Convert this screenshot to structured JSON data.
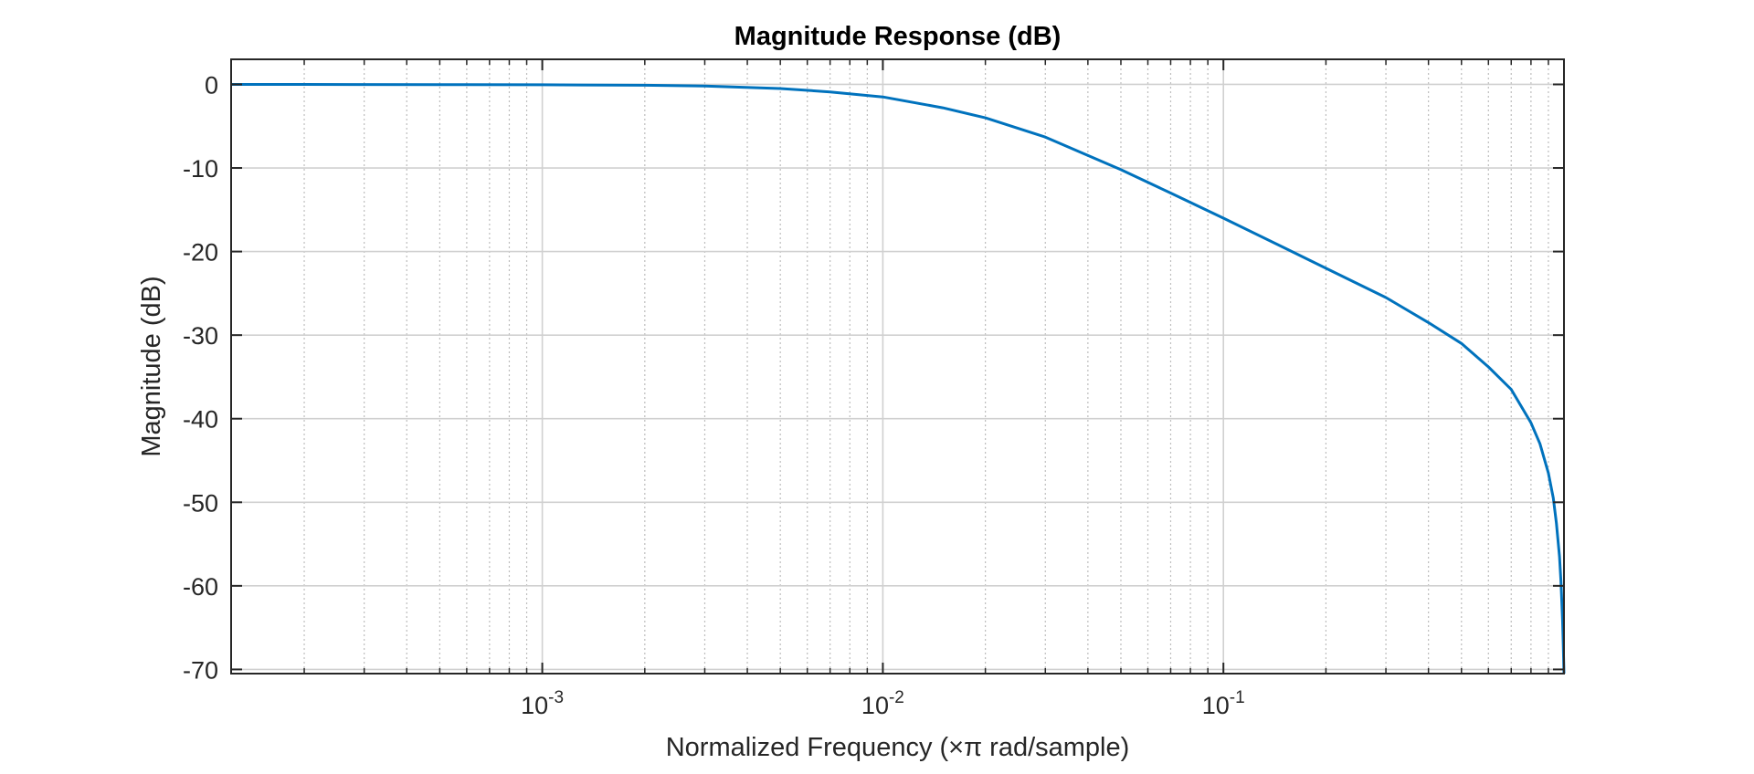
{
  "chart_data": {
    "type": "line",
    "title": "Magnitude Response (dB)",
    "xlabel": "Normalized Frequency (×π rad/sample)",
    "ylabel": "Magnitude (dB)",
    "xscale": "log",
    "xlim": [
      0.000122,
      1
    ],
    "ylim": [
      -70.5,
      3
    ],
    "grid": true,
    "xticks": [
      {
        "value": 0.001,
        "base": "10",
        "exp": "-3"
      },
      {
        "value": 0.01,
        "base": "10",
        "exp": "-2"
      },
      {
        "value": 0.1,
        "base": "10",
        "exp": "-1"
      }
    ],
    "yticks": [
      0,
      -10,
      -20,
      -30,
      -40,
      -50,
      -60,
      -70
    ],
    "series": [
      {
        "color": "#0072BD",
        "x": [
          0.000122,
          0.0002,
          0.0005,
          0.001,
          0.002,
          0.003,
          0.005,
          0.007,
          0.01,
          0.015,
          0.02,
          0.03,
          0.05,
          0.07,
          0.1,
          0.15,
          0.2,
          0.3,
          0.4,
          0.5,
          0.6,
          0.7,
          0.8,
          0.85,
          0.9,
          0.93,
          0.95,
          0.97,
          0.98,
          0.99,
          0.995,
          1.0
        ],
        "y": [
          0,
          0,
          -0.02,
          -0.05,
          -0.1,
          -0.2,
          -0.5,
          -0.9,
          -1.5,
          -2.8,
          -4.0,
          -6.3,
          -10.2,
          -13.0,
          -16.0,
          -19.5,
          -22.0,
          -25.5,
          -28.5,
          -31.0,
          -33.8,
          -36.5,
          -40.5,
          -43.0,
          -46.5,
          -49.5,
          -52.5,
          -56.5,
          -59.5,
          -64.0,
          -67.0,
          -70.5
        ]
      }
    ]
  }
}
